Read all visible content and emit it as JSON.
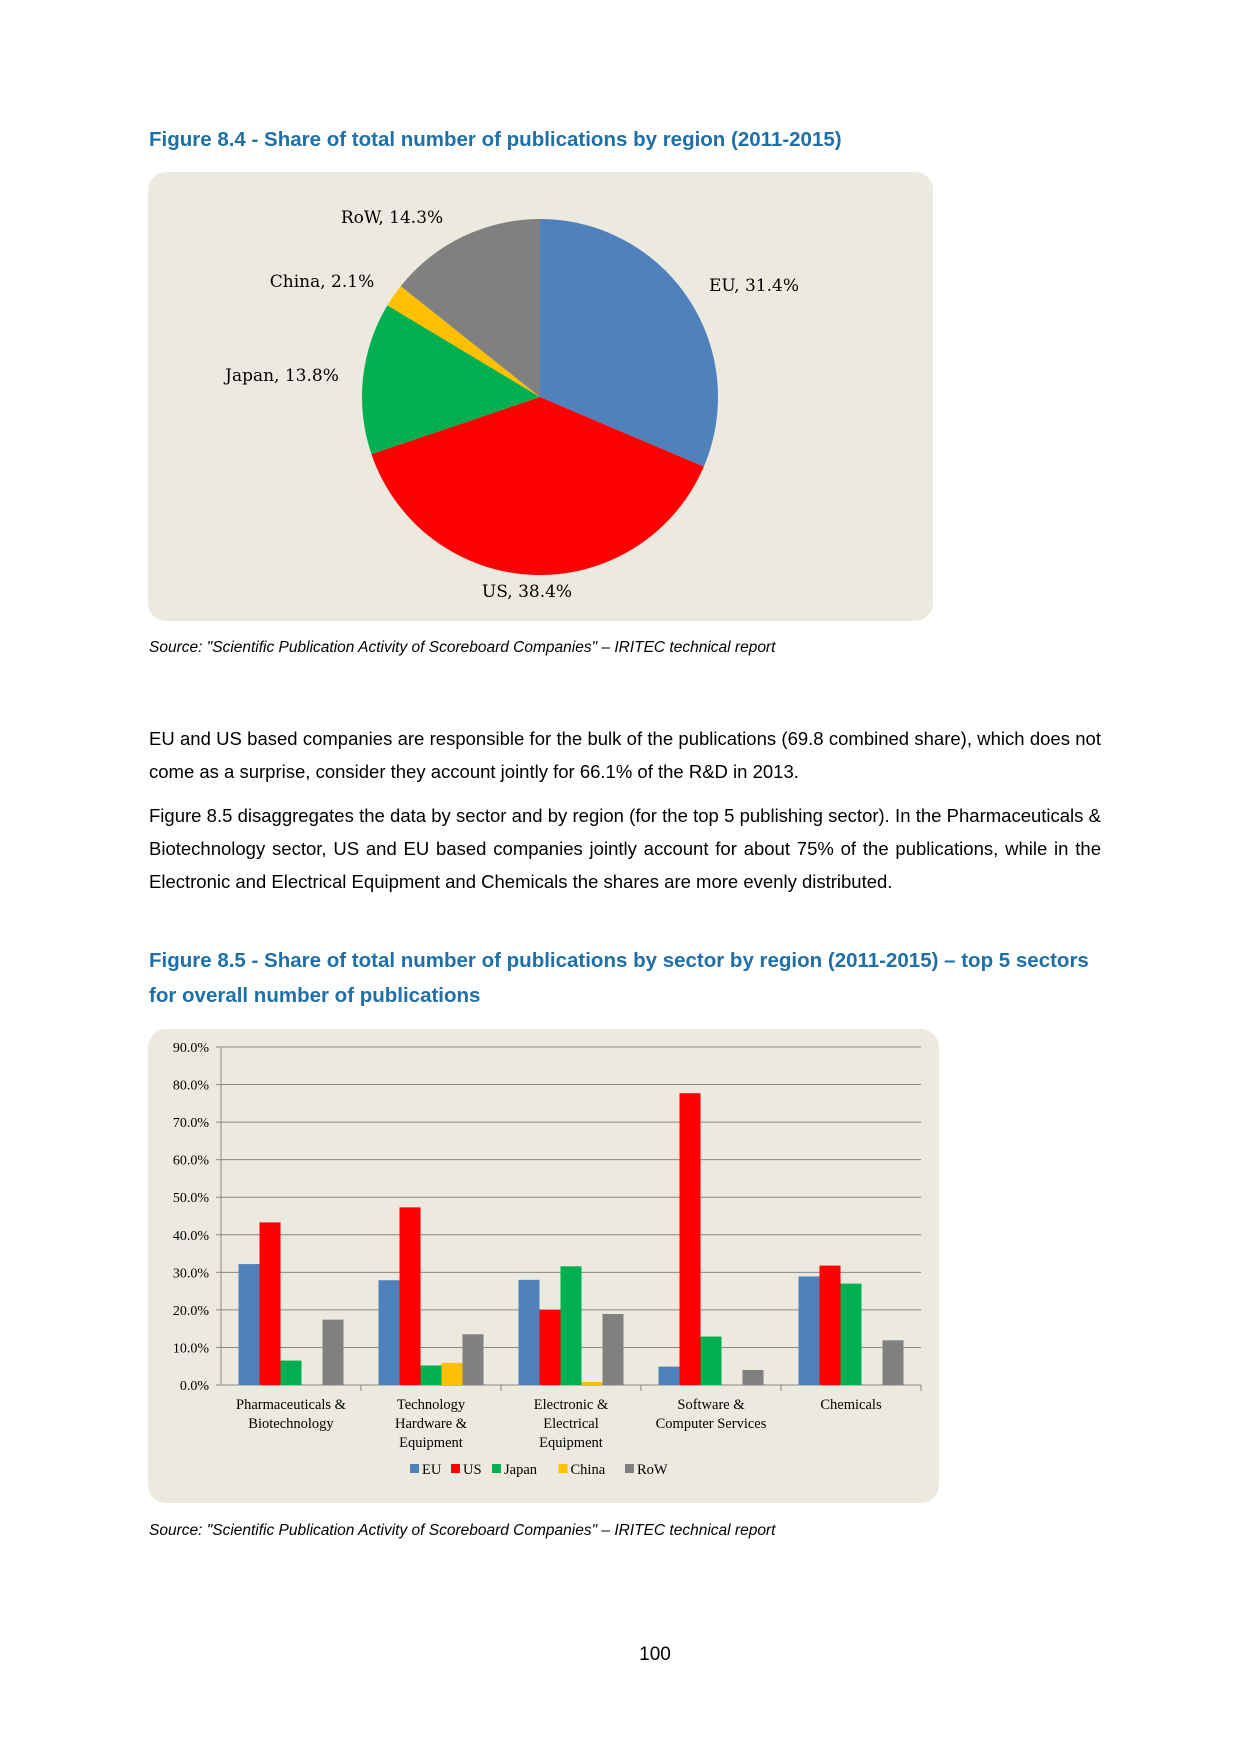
{
  "figure_8_4": {
    "title": "Figure 8.4 - Share of total number of publications by region (2011-2015)",
    "source": "Source: \"Scientific Publication Activity of Scoreboard Companies\" – IRITEC technical report"
  },
  "body": {
    "paragraph1": "EU and US based companies are responsible for the bulk of the publications (69.8 combined share), which does not come as a surprise, consider they account jointly for 66.1% of the R&D in 2013.",
    "paragraph2": "Figure 8.5 disaggregates the data by sector and by region (for the top 5 publishing sector). In the Pharmaceuticals & Biotechnology sector, US and EU based companies jointly account for about 75% of the publications, while in the Electronic and Electrical Equipment and Chemicals the shares are more evenly distributed."
  },
  "figure_8_5": {
    "title": "Figure 8.5 - Share of total number of publications by sector by region (2011-2015) – top 5 sectors for overall number of publications",
    "source": "Source: \"Scientific Publication Activity of Scoreboard Companies\" – IRITEC technical report"
  },
  "page_number": "100",
  "chart_data": [
    {
      "type": "pie",
      "title": "Share of total number of publications by region (2011-2015)",
      "categories": [
        "EU",
        "US",
        "Japan",
        "China",
        "RoW"
      ],
      "values": [
        31.4,
        38.4,
        13.8,
        2.1,
        14.3
      ],
      "labels": [
        "EU, 31.4%",
        "US, 38.4%",
        "Japan, 13.8%",
        "China, 2.1%",
        "RoW, 14.3%"
      ],
      "colors": [
        "#4f81bd",
        "#ff0000",
        "#00b050",
        "#ffc000",
        "#808080"
      ]
    },
    {
      "type": "bar",
      "title": "Share of total number of publications by sector by region (2011-2015)",
      "categories": [
        [
          "Pharmaceuticals &",
          "Biotechnology"
        ],
        [
          "Technology",
          "Hardware &",
          "Equipment"
        ],
        [
          "Electronic &",
          "Electrical",
          "Equipment"
        ],
        [
          "Software &",
          "Computer Services"
        ],
        [
          "Chemicals"
        ]
      ],
      "series": [
        {
          "name": "EU",
          "color": "#4f81bd",
          "values": [
            32.2,
            27.9,
            28.0,
            4.9,
            28.9
          ]
        },
        {
          "name": "US",
          "color": "#ff0000",
          "values": [
            43.3,
            47.3,
            20.0,
            77.7,
            31.8
          ]
        },
        {
          "name": "Japan",
          "color": "#00b050",
          "values": [
            6.5,
            5.2,
            31.6,
            12.9,
            27.0
          ]
        },
        {
          "name": "China",
          "color": "#ffc000",
          "values": [
            0,
            5.9,
            0.8,
            0,
            0
          ]
        },
        {
          "name": "RoW",
          "color": "#808080",
          "values": [
            17.4,
            13.5,
            18.9,
            4.0,
            11.9
          ]
        }
      ],
      "yticks": [
        "0.0%",
        "10.0%",
        "20.0%",
        "30.0%",
        "40.0%",
        "50.0%",
        "60.0%",
        "70.0%",
        "80.0%",
        "90.0%"
      ],
      "ylim": [
        0,
        90
      ],
      "grid": true,
      "legend": "bottom"
    }
  ]
}
